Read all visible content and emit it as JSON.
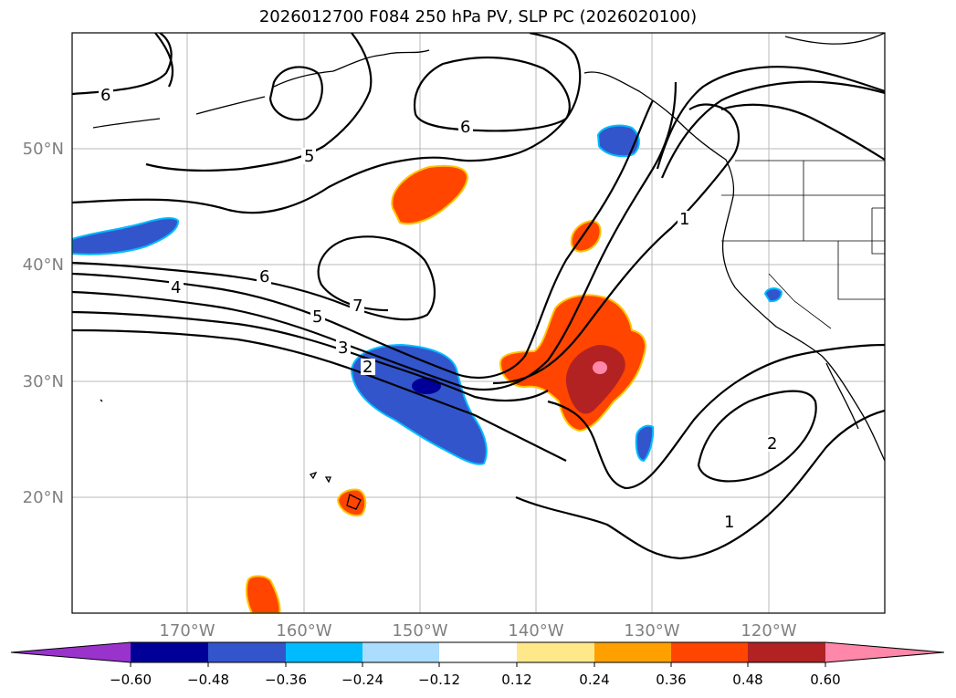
{
  "title": "2026012700 F084 250 hPa PV, SLP PC (2026020100)",
  "latitude_labels": [
    "50°N",
    "40°N",
    "30°N",
    "20°N"
  ],
  "longitude_labels": [
    "170°W",
    "160°W",
    "150°W",
    "140°W",
    "130°W",
    "120°W"
  ],
  "contour_labels": [
    "6",
    "5",
    "6",
    "6",
    "4",
    "5",
    "7",
    "3",
    "2",
    "1",
    "2",
    "1"
  ],
  "colorbar": {
    "colors": [
      "#9933cc",
      "#000099",
      "#3355cc",
      "#00bbff",
      "#aaddff",
      "#ffffff",
      "#ffe88a",
      "#ffa000",
      "#ff4500",
      "#b22222",
      "#ff88aa"
    ],
    "tick_labels": [
      "−0.60",
      "−0.48",
      "−0.36",
      "−0.24",
      "−0.12",
      "0.12",
      "0.24",
      "0.36",
      "0.48",
      "0.60"
    ]
  }
}
